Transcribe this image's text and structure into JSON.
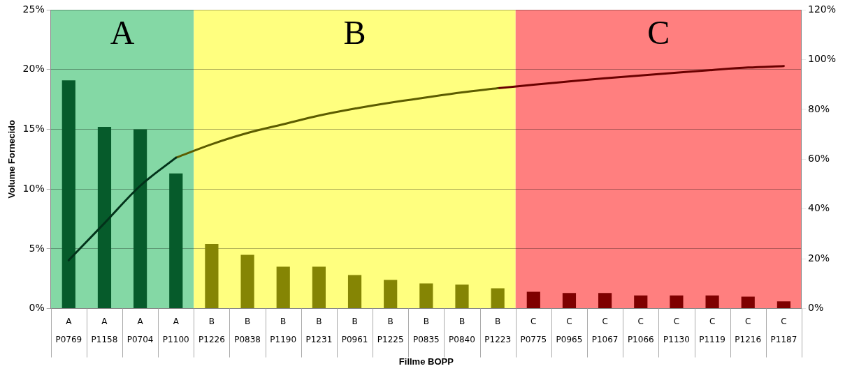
{
  "chart_data": {
    "type": "bar",
    "xlabel": "Fillme BOPP",
    "ylabel": "Volume Fornecido",
    "categories": [
      "A\nP0769",
      "A\nP1158",
      "A\nP0704",
      "A\nP1100",
      "B\nP1226",
      "B\nP0838",
      "B\nP1190",
      "B\nP1231",
      "B\nP0961",
      "B\nP1225",
      "B\nP0835",
      "B\nP0840",
      "B\nP1223",
      "C\nP0775",
      "C\nP0965",
      "C\nP1067",
      "C\nP1066",
      "C\nP1130",
      "C\nP1119",
      "C\nP1216",
      "C\nP1187"
    ],
    "series": [
      {
        "colors": [
          "#065b2b",
          "#065b2b",
          "#065b2b",
          "#065b2b",
          "#858504",
          "#858504",
          "#858504",
          "#858504",
          "#858504",
          "#858504",
          "#858504",
          "#858504",
          "#858504",
          "#7f0000",
          "#7f0000",
          "#7f0000",
          "#7f0000",
          "#7f0000",
          "#7f0000",
          "#7f0000",
          "#7f0000"
        ],
        "values": [
          19.1,
          15.2,
          15.0,
          11.3,
          5.4,
          4.5,
          3.5,
          3.5,
          2.8,
          2.4,
          2.1,
          2.0,
          1.7,
          1.4,
          1.3,
          1.3,
          1.1,
          1.1,
          1.1,
          1.0,
          0.6
        ]
      },
      {
        "type": "line",
        "axis": "y2",
        "color": "#02321a",
        "values": [
          19.4,
          34.3,
          49.3,
          60.6,
          null,
          null,
          null,
          null,
          null,
          null,
          null,
          null,
          null,
          null,
          null,
          null,
          null,
          null,
          null,
          null,
          null
        ]
      },
      {
        "type": "line",
        "axis": "y2",
        "color": "#5c5c00",
        "values": [
          null,
          null,
          null,
          60.6,
          66,
          70.5,
          74,
          77.5,
          80.3,
          82.7,
          84.8,
          86.8,
          88.5,
          null,
          null,
          null,
          null,
          null,
          null,
          null,
          null
        ]
      },
      {
        "type": "line",
        "axis": "y2",
        "color": "#6a0000",
        "values": [
          null,
          null,
          null,
          null,
          null,
          null,
          null,
          null,
          null,
          null,
          null,
          null,
          88.5,
          89.9,
          91.2,
          92.5,
          93.6,
          94.7,
          95.8,
          96.8,
          97.4
        ]
      }
    ],
    "ylim": [
      0,
      25
    ],
    "yticks": [
      {
        "value": 0,
        "label": "0%"
      },
      {
        "value": 5,
        "label": "5%"
      },
      {
        "value": 10,
        "label": "10%"
      },
      {
        "value": 15,
        "label": "15%"
      },
      {
        "value": 20,
        "label": "20%"
      },
      {
        "value": 25,
        "label": "25%"
      }
    ],
    "y2lim": [
      0,
      120
    ],
    "y2ticks": [
      {
        "value": 0,
        "label": "0%"
      },
      {
        "value": 20,
        "label": "20%"
      },
      {
        "value": 40,
        "label": "40%"
      },
      {
        "value": 60,
        "label": "60%"
      },
      {
        "value": 80,
        "label": "80%"
      },
      {
        "value": 100,
        "label": "100%"
      },
      {
        "value": 120,
        "label": "120%"
      }
    ],
    "bands": [
      {
        "axis": "x",
        "from": "A\nP0769",
        "to": "A\nP1100",
        "label": "A",
        "color": "#84d8a5"
      },
      {
        "axis": "x",
        "from": "B\nP1226",
        "to": "B\nP1223",
        "label": "B",
        "color": "#ffff7f"
      },
      {
        "axis": "x",
        "from": "C\nP0775",
        "to": "C\nP1187",
        "label": "C",
        "color": "#ff7f7f"
      }
    ],
    "grid": "y",
    "legend": false,
    "marker": "none",
    "line_style": "solid"
  }
}
